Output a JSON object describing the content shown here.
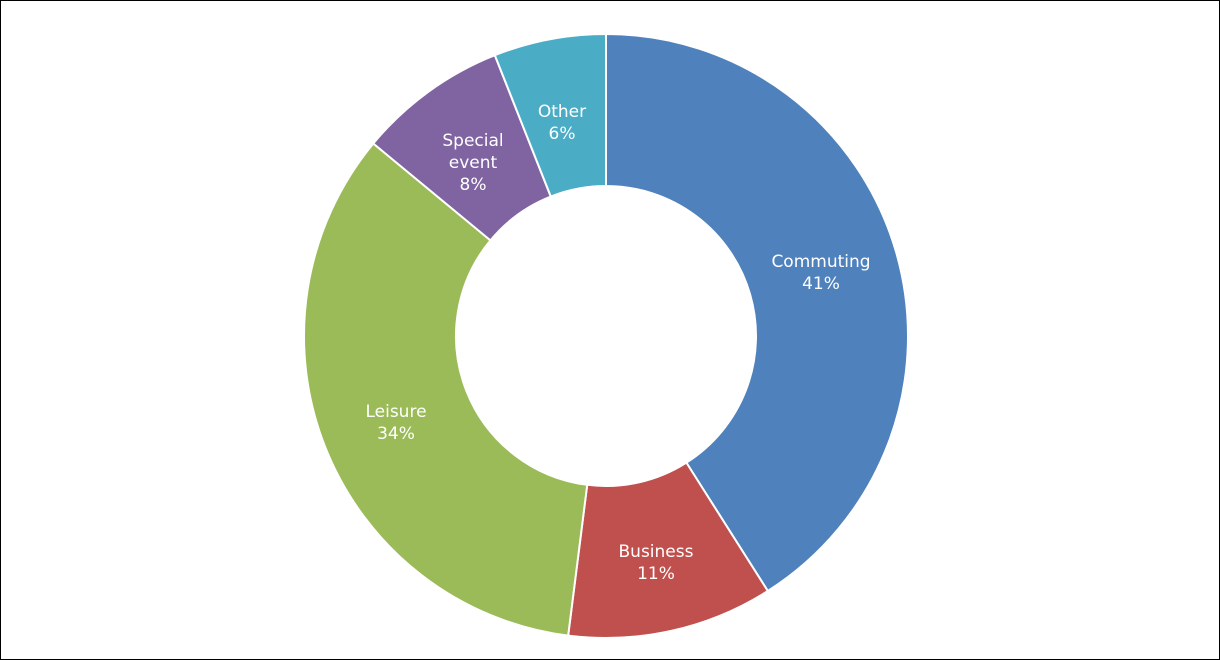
{
  "chart_data": {
    "type": "pie",
    "variant": "donut",
    "title": "",
    "categories": [
      "Commuting",
      "Business",
      "Leisure",
      "Special event",
      "Other"
    ],
    "values": [
      41,
      11,
      34,
      8,
      6
    ],
    "unit": "%",
    "series": [
      {
        "values": [
          41,
          11,
          34,
          8,
          6
        ]
      }
    ],
    "data_labels": [
      [
        "Commuting",
        "41%"
      ],
      [
        "Business",
        "11%"
      ],
      [
        "Leisure",
        "34%"
      ],
      [
        "Special",
        "event",
        "8%"
      ],
      [
        "Other",
        "6%"
      ]
    ],
    "colors": [
      "#4F81BD",
      "#C0504D",
      "#9BBB59",
      "#8064A2",
      "#4BACC6"
    ],
    "start_angle": "12 o'clock",
    "direction": "clockwise",
    "legend": "none"
  }
}
